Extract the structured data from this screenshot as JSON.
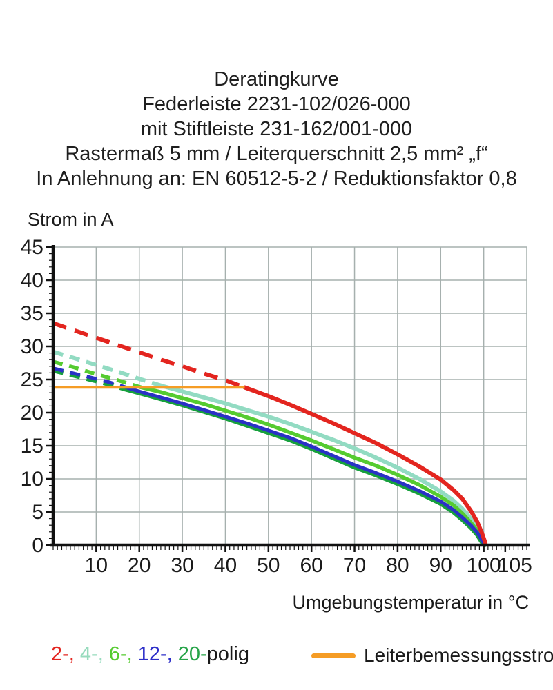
{
  "title_lines": [
    "Deratingkurve",
    "Federleiste 2231-102/026-000",
    "mit Stiftleiste 231-162/001-000",
    "Rastermaß 5 mm / Leiterquerschnitt 2,5 mm² „f“",
    "In Anlehnung an: EN 60512-5-2 / Reduktionsfaktor 0,8"
  ],
  "legend": {
    "pole_parts": [
      {
        "text": "2-, ",
        "color": "#e3251f"
      },
      {
        "text": "4-, ",
        "color": "#97dbbd"
      },
      {
        "text": "6-, ",
        "color": "#55cb30"
      },
      {
        "text": "12-, ",
        "color": "#2d2fc9"
      },
      {
        "text": "20-",
        "color": "#27a449"
      },
      {
        "text": "polig",
        "color": "#1a1a1a"
      }
    ],
    "rated_current_label": "Leiterbemessungsstrom",
    "rated_current_color": "#f59c25"
  },
  "chart_data": {
    "type": "line",
    "title": "Deratingkurve",
    "xlabel": "Umgebungstemperatur in °C",
    "ylabel": "Strom in A",
    "xlim": [
      0,
      110
    ],
    "ylim": [
      0,
      45
    ],
    "xticks": [
      10,
      20,
      30,
      40,
      50,
      60,
      70,
      80,
      90,
      100,
      105
    ],
    "yticks": [
      0,
      5,
      10,
      15,
      20,
      25,
      30,
      35,
      40,
      45
    ],
    "grid": {
      "x_step": 10,
      "y_step": 5,
      "color": "#a6b0ae"
    },
    "note": "dashed segments lie above the rated conductor current of 23.8 A; solid below",
    "series": [
      {
        "name": "4-polig",
        "color": "#92dbc2",
        "width": 6,
        "dash": [
          15,
          10
        ],
        "dashed_until_x": 25.5,
        "points": [
          [
            0,
            29.2
          ],
          [
            5,
            28.2
          ],
          [
            10,
            27.2
          ],
          [
            15,
            26.2
          ],
          [
            20,
            25.1
          ],
          [
            25.5,
            24.0
          ],
          [
            30,
            23.2
          ],
          [
            35,
            22.3
          ],
          [
            40,
            21.4
          ],
          [
            45,
            20.4
          ],
          [
            50,
            19.4
          ],
          [
            55,
            18.3
          ],
          [
            60,
            17.1
          ],
          [
            65,
            15.9
          ],
          [
            70,
            14.6
          ],
          [
            75,
            13.2
          ],
          [
            80,
            11.7
          ],
          [
            85,
            10.0
          ],
          [
            90,
            8.1
          ],
          [
            93,
            6.7
          ],
          [
            95,
            5.5
          ],
          [
            97,
            4.0
          ],
          [
            98.5,
            2.6
          ],
          [
            99.6,
            1.1
          ],
          [
            100.3,
            0.2
          ]
        ]
      },
      {
        "name": "6-polig",
        "color": "#55cb30",
        "width": 5.5,
        "dash": [
          14,
          10
        ],
        "dashed_until_x": 20.5,
        "points": [
          [
            0,
            27.7
          ],
          [
            5,
            26.8
          ],
          [
            10,
            25.8
          ],
          [
            15,
            24.9
          ],
          [
            20.5,
            23.8
          ],
          [
            25,
            23.1
          ],
          [
            30,
            22.2
          ],
          [
            35,
            21.3
          ],
          [
            40,
            20.3
          ],
          [
            45,
            19.3
          ],
          [
            50,
            18.2
          ],
          [
            55,
            17.0
          ],
          [
            60,
            15.8
          ],
          [
            65,
            14.5
          ],
          [
            70,
            13.2
          ],
          [
            75,
            12.0
          ],
          [
            80,
            10.6
          ],
          [
            85,
            9.1
          ],
          [
            90,
            7.3
          ],
          [
            93,
            6.0
          ],
          [
            95,
            4.8
          ],
          [
            97,
            3.4
          ],
          [
            98.5,
            2.2
          ],
          [
            99.6,
            0.9
          ],
          [
            100.3,
            0.15
          ]
        ]
      },
      {
        "name": "20-polig",
        "color": "#17a03d",
        "width": 7,
        "dash": [
          15,
          10
        ],
        "dashed_until_x": 16.5,
        "points": [
          [
            0,
            26.4
          ],
          [
            5,
            25.6
          ],
          [
            10,
            24.8
          ],
          [
            13,
            24.3
          ],
          [
            16.5,
            23.6
          ],
          [
            20,
            23.0
          ],
          [
            25,
            22.1
          ],
          [
            30,
            21.2
          ],
          [
            35,
            20.2
          ],
          [
            40,
            19.2
          ],
          [
            45,
            18.1
          ],
          [
            50,
            17.0
          ],
          [
            55,
            15.9
          ],
          [
            60,
            14.6
          ],
          [
            65,
            13.2
          ],
          [
            70,
            11.8
          ],
          [
            75,
            10.6
          ],
          [
            80,
            9.3
          ],
          [
            85,
            7.9
          ],
          [
            90,
            6.3
          ],
          [
            93,
            5.0
          ],
          [
            95,
            3.9
          ],
          [
            97,
            2.7
          ],
          [
            98.5,
            1.6
          ],
          [
            99.6,
            0.5
          ],
          [
            100.2,
            0.05
          ]
        ]
      },
      {
        "name": "12-polig",
        "color": "#2a31c6",
        "width": 5,
        "dash": [
          15,
          10
        ],
        "dashed_until_x": 17,
        "points": [
          [
            0,
            26.7
          ],
          [
            5,
            25.9
          ],
          [
            10,
            25.1
          ],
          [
            13,
            24.6
          ],
          [
            17,
            23.8
          ],
          [
            20,
            23.2
          ],
          [
            25,
            22.3
          ],
          [
            30,
            21.4
          ],
          [
            35,
            20.4
          ],
          [
            40,
            19.4
          ],
          [
            45,
            18.4
          ],
          [
            50,
            17.3
          ],
          [
            55,
            16.2
          ],
          [
            60,
            14.9
          ],
          [
            65,
            13.5
          ],
          [
            70,
            12.1
          ],
          [
            75,
            10.9
          ],
          [
            80,
            9.6
          ],
          [
            85,
            8.2
          ],
          [
            90,
            6.6
          ],
          [
            93,
            5.3
          ],
          [
            95,
            4.2
          ],
          [
            97,
            3.0
          ],
          [
            98.5,
            1.9
          ],
          [
            99.6,
            0.7
          ],
          [
            100.25,
            0.1
          ]
        ]
      },
      {
        "name": "2-polig",
        "color": "#e3251f",
        "width": 6,
        "dash": [
          20,
          13
        ],
        "dashed_until_x": 44.5,
        "points": [
          [
            0,
            33.5
          ],
          [
            5,
            32.4
          ],
          [
            10,
            31.3
          ],
          [
            15,
            30.2
          ],
          [
            20,
            29.1
          ],
          [
            25,
            28.0
          ],
          [
            30,
            27.0
          ],
          [
            35,
            25.9
          ],
          [
            40,
            24.9
          ],
          [
            44.5,
            23.8
          ],
          [
            50,
            22.5
          ],
          [
            55,
            21.2
          ],
          [
            60,
            19.8
          ],
          [
            65,
            18.4
          ],
          [
            70,
            16.9
          ],
          [
            75,
            15.4
          ],
          [
            80,
            13.7
          ],
          [
            85,
            11.9
          ],
          [
            90,
            9.9
          ],
          [
            93,
            8.3
          ],
          [
            95,
            7.0
          ],
          [
            97,
            5.2
          ],
          [
            98.5,
            3.5
          ],
          [
            99.6,
            1.8
          ],
          [
            100.4,
            0.3
          ]
        ]
      },
      {
        "name": "Leiterbemessungsstrom",
        "color": "#f59c25",
        "width": 3.5,
        "dash": null,
        "dashed_until_x": null,
        "points": [
          [
            0,
            23.8
          ],
          [
            44.5,
            23.8
          ]
        ]
      }
    ]
  }
}
